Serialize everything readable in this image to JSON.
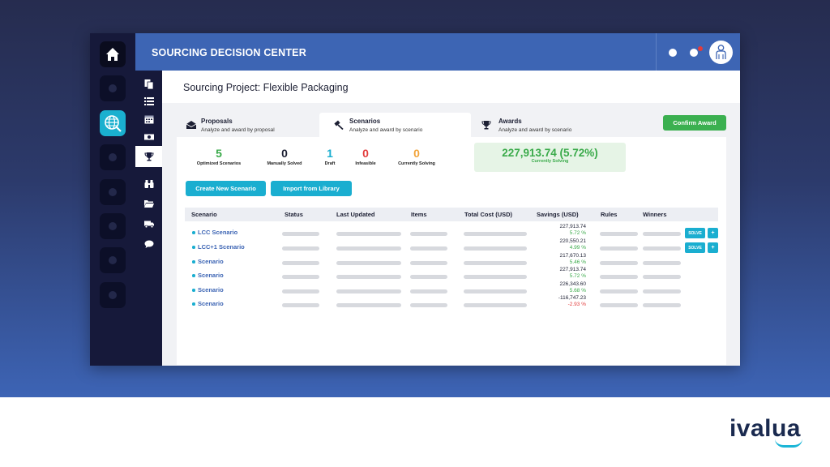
{
  "app": {
    "title": "SOURCING DECISION CENTER"
  },
  "project": {
    "title": "Sourcing Project: Flexible Packaging"
  },
  "tabs": [
    {
      "label": "Proposals",
      "sub": "Analyze and award by proposal",
      "icon": "envelope-icon"
    },
    {
      "label": "Scenarios",
      "sub": "Analyze and award by scenario",
      "icon": "gavel-icon"
    },
    {
      "label": "Awards",
      "sub": "Analyze and award by scenario",
      "icon": "trophy-icon"
    }
  ],
  "actions": {
    "confirm_award": "Confirm Award",
    "create_scenario": "Create New Scenario",
    "import_library": "Import from Library"
  },
  "stats": [
    {
      "value": "5",
      "label": "Optimized Scenarios",
      "color": "#3aaa4a"
    },
    {
      "value": "0",
      "label": "Manually Solved",
      "color": "#1c1f33"
    },
    {
      "value": "1",
      "label": "Draft",
      "color": "#1aaed0"
    },
    {
      "value": "0",
      "label": "Infeasible",
      "color": "#e23b3b"
    },
    {
      "value": "0",
      "label": "Currently Solving",
      "color": "#f2a43a"
    }
  ],
  "solving": {
    "value": "227,913.74 (5.72%)",
    "label": "Currently Solving"
  },
  "table": {
    "columns": [
      "Scenario",
      "Status",
      "Last Updated",
      "Items",
      "Total Cost (USD)",
      "Savings (USD)",
      "Rules",
      "Winners"
    ],
    "rows": [
      {
        "name": "LCC Scenario",
        "savings": "227,913.74",
        "pct": "5.72 %",
        "positive": true,
        "solve": "SOLVE",
        "plus": "+"
      },
      {
        "name": "LCC+1 Scenario",
        "savings": "220,550.21",
        "pct": "4.99 %",
        "positive": true,
        "solve": "SOLVE",
        "plus": "+"
      },
      {
        "name": "Scenario",
        "savings": "217,670.13",
        "pct": "5.46 %",
        "positive": true
      },
      {
        "name": "Scenario",
        "savings": "227,913.74",
        "pct": "5.72 %",
        "positive": true
      },
      {
        "name": "Scenario",
        "savings": "226,343.60",
        "pct": "5.68 %",
        "positive": true
      },
      {
        "name": "Scenario",
        "savings": "-116,747.23",
        "pct": "-2.93 %",
        "positive": false
      }
    ]
  },
  "brand": {
    "name": "ivalua"
  },
  "colors": {
    "accent": "#1aaed0",
    "topbar": "#3d65b4",
    "positive": "#3aaa4a",
    "negative": "#e23b3b",
    "rail": "#16193a"
  }
}
